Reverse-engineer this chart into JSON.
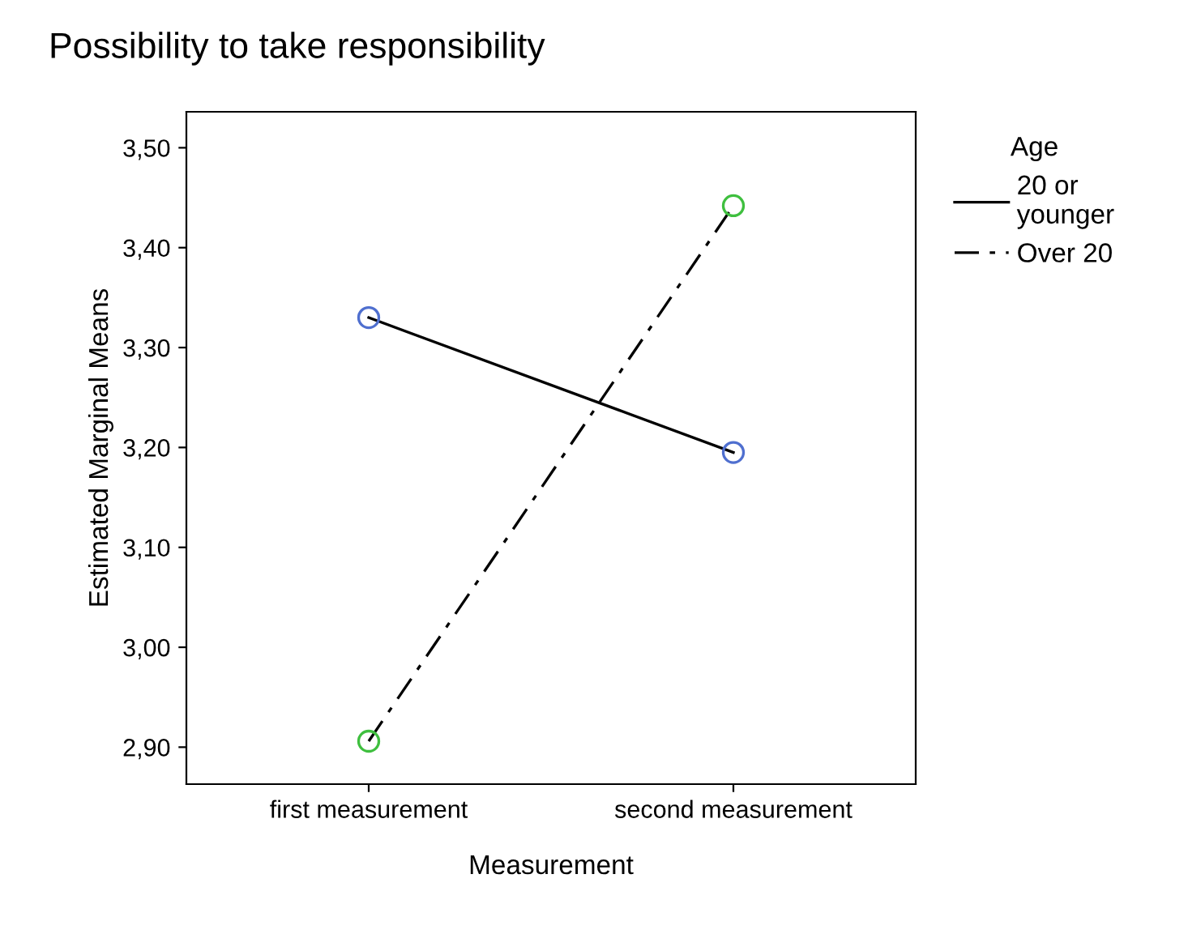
{
  "chart_data": {
    "type": "line",
    "title": "Possibility to take responsibility",
    "xlabel": "Measurement",
    "ylabel": "Estimated Marginal Means",
    "legend_title": "Age",
    "categories": [
      "first measurement",
      "second measurement"
    ],
    "series": [
      {
        "name": "20 or\nyounger",
        "color": "#4f6fcf",
        "values": [
          3.33,
          3.195
        ],
        "line_style": "solid"
      },
      {
        "name": "Over 20",
        "color": "#3fbf3f",
        "values": [
          2.906,
          3.442
        ],
        "line_style": "dashed"
      }
    ],
    "ylim": [
      2.863,
      3.536
    ],
    "yticks": [
      {
        "value": 2.9,
        "label": "2,90"
      },
      {
        "value": 3.0,
        "label": "3,00"
      },
      {
        "value": 3.1,
        "label": "3,10"
      },
      {
        "value": 3.2,
        "label": "3,20"
      },
      {
        "value": 3.3,
        "label": "3,30"
      },
      {
        "value": 3.4,
        "label": "3,40"
      },
      {
        "value": 3.5,
        "label": "3,50"
      }
    ],
    "marker": "circle",
    "legend": "top right",
    "grid": false
  }
}
